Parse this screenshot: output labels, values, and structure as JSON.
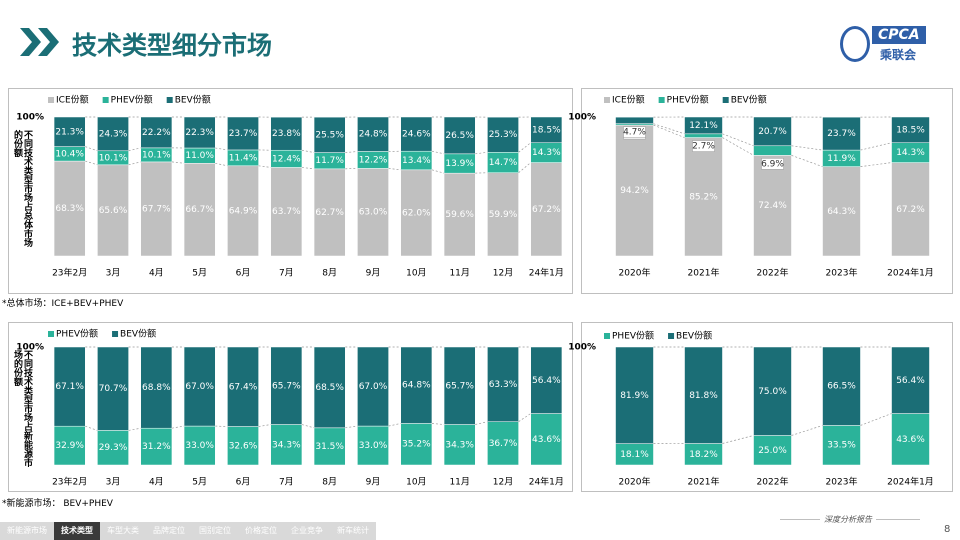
{
  "header": {
    "title": "技术类型细分市场"
  },
  "logo": {
    "text": "CPCA",
    "subtitle": "乘联会"
  },
  "chart_data": [
    {
      "type": "stacked_bar",
      "y_label": "不同技术类型市场占总体市场的份额",
      "categories": [
        "23年2月",
        "3月",
        "4月",
        "5月",
        "6月",
        "7月",
        "8月",
        "9月",
        "10月",
        "11月",
        "12月",
        "24年1月"
      ],
      "ylim": [
        0,
        100
      ],
      "yticks": [
        {
          "value": 100,
          "label": "100%"
        }
      ],
      "series": [
        {
          "name": "ICE份额",
          "color": "#c0c0c0",
          "values": [
            68.3,
            65.6,
            67.7,
            66.7,
            64.9,
            63.7,
            62.7,
            63.0,
            62.0,
            59.6,
            59.9,
            67.2
          ],
          "value_labels": [
            "68.3%",
            "65.6%",
            "67.7%",
            "66.7%",
            "64.9%",
            "63.7%",
            "62.7%",
            "63.0%",
            "62.0%",
            "59.6%",
            "59.9%",
            "67.2%"
          ]
        },
        {
          "name": "PHEV份额",
          "color": "#2bb39a",
          "values": [
            10.4,
            10.1,
            10.1,
            11.0,
            11.4,
            12.4,
            11.7,
            12.2,
            13.4,
            13.9,
            14.7,
            14.3
          ],
          "value_labels": [
            "10.4%",
            "10.1%",
            "10.1%",
            "11.0%",
            "11.4%",
            "12.4%",
            "11.7%",
            "12.2%",
            "13.4%",
            "13.9%",
            "14.7%",
            "14.3%"
          ]
        },
        {
          "name": "BEV份额",
          "color": "#1b6e76",
          "values": [
            21.3,
            24.3,
            22.2,
            22.3,
            23.7,
            23.8,
            25.5,
            24.8,
            24.6,
            26.5,
            25.3,
            18.5
          ],
          "value_labels": [
            "21.3%",
            "24.3%",
            "22.2%",
            "22.3%",
            "23.7%",
            "23.8%",
            "25.5%",
            "24.8%",
            "24.6%",
            "26.5%",
            "25.3%",
            "18.5%"
          ]
        }
      ],
      "footnote": "*总体市场：ICE+BEV+PHEV"
    },
    {
      "type": "stacked_bar",
      "categories": [
        "2020年",
        "2021年",
        "2022年",
        "2023年",
        "2024年1月"
      ],
      "ylim": [
        0,
        100
      ],
      "yticks": [
        {
          "value": 100,
          "label": "100%"
        }
      ],
      "series": [
        {
          "name": "ICE份额",
          "color": "#c0c0c0",
          "values": [
            94.2,
            85.2,
            72.4,
            64.3,
            67.2
          ],
          "value_labels": [
            "94.2%",
            "85.2%",
            "72.4%",
            "64.3%",
            "67.2%"
          ]
        },
        {
          "name": "PHEV份额",
          "color": "#2bb39a",
          "values": [
            1.0,
            2.7,
            6.9,
            11.9,
            14.3
          ],
          "value_labels": [
            "1.0%",
            "2.7%",
            "6.9%",
            "11.9%",
            "14.3%"
          ]
        },
        {
          "name": "BEV份额",
          "color": "#1b6e76",
          "values": [
            4.7,
            12.1,
            20.7,
            23.7,
            18.5
          ],
          "value_labels": [
            "4.7%",
            "12.1%",
            "20.7%",
            "23.7%",
            "18.5%"
          ]
        }
      ]
    },
    {
      "type": "stacked_bar",
      "y_label": "不同技术类型市场占新能源市场的份额",
      "categories": [
        "23年2月",
        "3月",
        "4月",
        "5月",
        "6月",
        "7月",
        "8月",
        "9月",
        "10月",
        "11月",
        "12月",
        "24年1月"
      ],
      "ylim": [
        0,
        100
      ],
      "yticks": [
        {
          "value": 100,
          "label": "100%"
        }
      ],
      "series": [
        {
          "name": "PHEV份额",
          "color": "#2bb39a",
          "values": [
            32.9,
            29.3,
            31.2,
            33.0,
            32.6,
            34.3,
            31.5,
            33.0,
            35.2,
            34.3,
            36.7,
            43.6
          ],
          "value_labels": [
            "32.9%",
            "29.3%",
            "31.2%",
            "33.0%",
            "32.6%",
            "34.3%",
            "31.5%",
            "33.0%",
            "35.2%",
            "34.3%",
            "36.7%",
            "43.6%"
          ]
        },
        {
          "name": "BEV份额",
          "color": "#1b6e76",
          "values": [
            67.1,
            70.7,
            68.8,
            67.0,
            67.4,
            65.7,
            68.5,
            67.0,
            64.8,
            65.7,
            63.3,
            56.4
          ],
          "value_labels": [
            "67.1%",
            "70.7%",
            "68.8%",
            "67.0%",
            "67.4%",
            "65.7%",
            "68.5%",
            "67.0%",
            "64.8%",
            "65.7%",
            "63.3%",
            "56.4%"
          ]
        }
      ],
      "footnote": "*新能源市场： BEV+PHEV"
    },
    {
      "type": "stacked_bar",
      "categories": [
        "2020年",
        "2021年",
        "2022年",
        "2023年",
        "2024年1月"
      ],
      "ylim": [
        0,
        100
      ],
      "yticks": [
        {
          "value": 100,
          "label": "100%"
        }
      ],
      "series": [
        {
          "name": "PHEV份额",
          "color": "#2bb39a",
          "values": [
            18.1,
            18.2,
            25.0,
            33.5,
            43.6
          ],
          "value_labels": [
            "18.1%",
            "18.2%",
            "25.0%",
            "33.5%",
            "43.6%"
          ]
        },
        {
          "name": "BEV份额",
          "color": "#1b6e76",
          "values": [
            81.9,
            81.8,
            75.0,
            66.5,
            56.4
          ],
          "value_labels": [
            "81.9%",
            "81.8%",
            "75.0%",
            "66.5%",
            "56.4%"
          ]
        }
      ]
    }
  ],
  "nav": [
    "新能源市场",
    "技术类型",
    "车型大类",
    "品牌定位",
    "国别定位",
    "价格定位",
    "企业竞争",
    "新车统计"
  ],
  "footer": {
    "report": "深度分析报告",
    "page": "8"
  }
}
